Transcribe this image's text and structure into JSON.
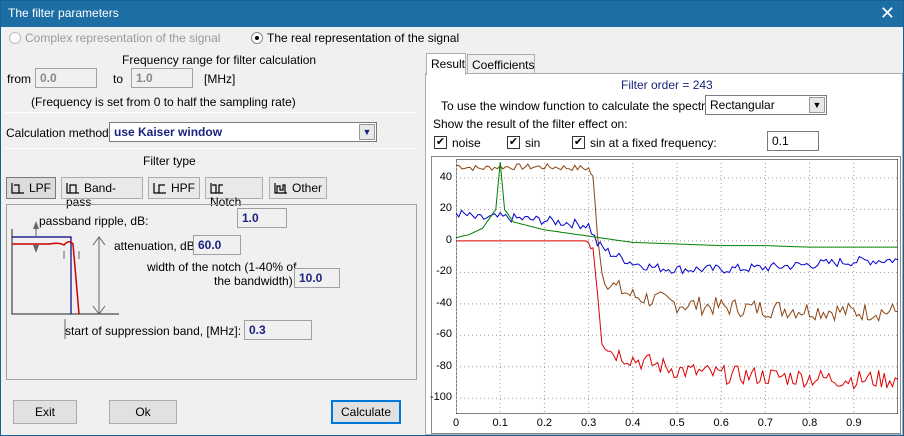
{
  "window": {
    "title": "The filter parameters",
    "close": "✕"
  },
  "representation": {
    "complex_label": "Complex representation of the signal",
    "real_label": "The real representation of the signal",
    "selected": "real"
  },
  "freq": {
    "header": "Frequency range for filter calculation",
    "from_label": "from",
    "from_value": "0.0",
    "to_label": "to",
    "to_value": "1.0",
    "unit": "[MHz]",
    "note": "(Frequency is set from 0 to half the sampling rate)"
  },
  "method": {
    "label": "Calculation method:",
    "value": "use Kaiser window"
  },
  "filter_type": {
    "header": "Filter type",
    "buttons": [
      "LPF",
      "Band-pass",
      "HPF",
      "Notch",
      "Other"
    ],
    "selected": "LPF"
  },
  "params": {
    "ripple_label": "passband ripple, dB:",
    "ripple_value": "1.0",
    "atten_label": "attenuation, dB",
    "atten_value": "60.0",
    "notch_label1": "width of the notch (1-40% of",
    "notch_label2": "the bandwidth)",
    "notch_value": "10.0",
    "supp_label": "start of suppression band, [MHz]:",
    "supp_value": "0.3"
  },
  "buttons": {
    "exit": "Exit",
    "ok": "Ok",
    "calculate": "Calculate"
  },
  "tabs": {
    "result": "Result",
    "coefficients": "Coefficients",
    "active": "Result"
  },
  "result": {
    "order": "Filter order = 243",
    "window_label": "To use the window function to calculate the spectrum:",
    "window_value": "Rectangular",
    "show_label": "Show the result of the filter effect on:",
    "noise_label": "noise",
    "sin_label": "sin",
    "fixed_label": "sin at a fixed frequency:",
    "fixed_value": "0.1"
  },
  "chart_data": {
    "type": "line",
    "xlim": [
      0,
      1
    ],
    "ylim": [
      -110,
      52
    ],
    "xticks": [
      "0",
      "0.1",
      "0.2",
      "0.3",
      "0.4",
      "0.5",
      "0.6",
      "0.7",
      "0.8",
      "0.9"
    ],
    "yticks": [
      "40",
      "20",
      "0",
      "-20",
      "-40",
      "-60",
      "-80",
      "-100"
    ],
    "grid": true,
    "series": [
      {
        "color": "#8b4513",
        "x": [
          0,
          0.02,
          0.05,
          0.1,
          0.2,
          0.3,
          0.31,
          0.32,
          0.33,
          0.35,
          0.4,
          0.5,
          0.6,
          0.7,
          0.8,
          0.9,
          1.0
        ],
        "y": [
          48,
          47,
          46,
          47,
          47,
          46,
          40,
          5,
          -20,
          -28,
          -35,
          -40,
          -42,
          -43,
          -44,
          -45,
          -45
        ]
      },
      {
        "color": "#0000cc",
        "x": [
          0,
          0.05,
          0.1,
          0.2,
          0.3,
          0.32,
          0.35,
          0.4,
          0.45,
          0.5,
          0.6,
          0.7,
          0.8,
          0.9,
          1.0
        ],
        "y": [
          18,
          14,
          15,
          13,
          10,
          -2,
          -8,
          -14,
          -17,
          -18,
          -18,
          -17,
          -15,
          -13,
          -12
        ]
      },
      {
        "color": "#008000",
        "x": [
          0,
          0.03,
          0.06,
          0.09,
          0.1,
          0.11,
          0.13,
          0.2,
          0.3,
          0.4,
          0.5,
          0.6,
          0.7,
          0.8,
          0.9,
          1.0
        ],
        "y": [
          2,
          4,
          8,
          20,
          50,
          20,
          12,
          7,
          3,
          -1,
          -2,
          -3,
          -3,
          -4,
          -4,
          -4
        ]
      },
      {
        "color": "#dd0000",
        "x": [
          0,
          0.1,
          0.2,
          0.3,
          0.31,
          0.32,
          0.33,
          0.35,
          0.4,
          0.5,
          0.6,
          0.7,
          0.8,
          0.9,
          1.0
        ],
        "y": [
          0,
          0,
          0,
          0,
          -3,
          -30,
          -62,
          -70,
          -75,
          -82,
          -85,
          -86,
          -87,
          -88,
          -88
        ]
      }
    ]
  }
}
